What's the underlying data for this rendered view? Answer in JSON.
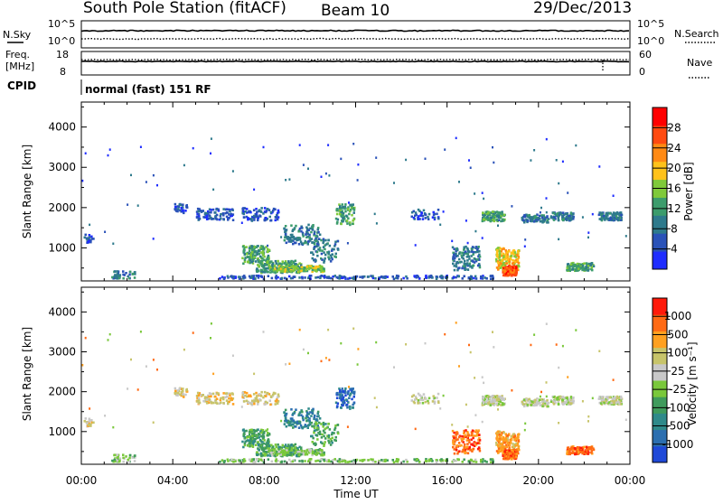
{
  "header": {
    "station": "South Pole Station (fitACF)",
    "beam": "Beam 10",
    "date": "29/Dec/2013"
  },
  "top_panels": {
    "nsky_label": "N.Sky",
    "nsky_ticks": [
      "10^5",
      "10^0"
    ],
    "nsearch_ticks": [
      "10^5",
      "10^0"
    ],
    "nsearch_label": "N.Search",
    "freq_label_1": "Freq.",
    "freq_label_2": "[MHz]",
    "freq_ticks": [
      "18",
      "8"
    ],
    "nave_ticks": [
      "60",
      "0"
    ],
    "nave_label": "Nave",
    "cpid_label": "CPID",
    "cpid_text": "normal (fast) 151 RF"
  },
  "colors": {
    "power_scale": [
      "#1f2dff",
      "#2a52b8",
      "#2e7a8c",
      "#3c9c6c",
      "#7fc93a",
      "#ffc21a",
      "#ff8a14",
      "#ff4a10",
      "#ff0000"
    ],
    "velocity_scale": [
      "#1f49d8",
      "#2c6fb0",
      "#2f8a8a",
      "#3f9b5c",
      "#7ac83b",
      "#c8c8c8",
      "#c7c46a",
      "#ffa020",
      "#ff6a14",
      "#ff1a0a"
    ]
  },
  "chart_data": [
    {
      "type": "heatmap",
      "title": "",
      "ylabel": "Slant Range [km]",
      "y_ticks": [
        "4000",
        "3000",
        "2000",
        "1000"
      ],
      "ylim": [
        180,
        4620
      ],
      "colorbar_label": "Power [dB]",
      "colorbar_ticks": [
        "28",
        "24",
        "20",
        "16",
        "12",
        "8",
        "4"
      ],
      "clim": [
        0,
        30
      ]
    },
    {
      "type": "heatmap",
      "title": "",
      "xlabel": "Time UT",
      "x_ticks": [
        "00:00",
        "04:00",
        "08:00",
        "12:00",
        "16:00",
        "20:00",
        "00:00"
      ],
      "xlim": [
        "00:00",
        "24:00"
      ],
      "ylabel": "Slant Range [km]",
      "y_ticks": [
        "4000",
        "3000",
        "2000",
        "1000"
      ],
      "ylim": [
        180,
        4620
      ],
      "colorbar_label": "Velocity [m s⁻¹]",
      "colorbar_ticks": [
        "1000",
        "500",
        "100",
        "25",
        "-25",
        "-100",
        "-500",
        "-1000"
      ],
      "clim": [
        -1000,
        1000
      ]
    }
  ]
}
